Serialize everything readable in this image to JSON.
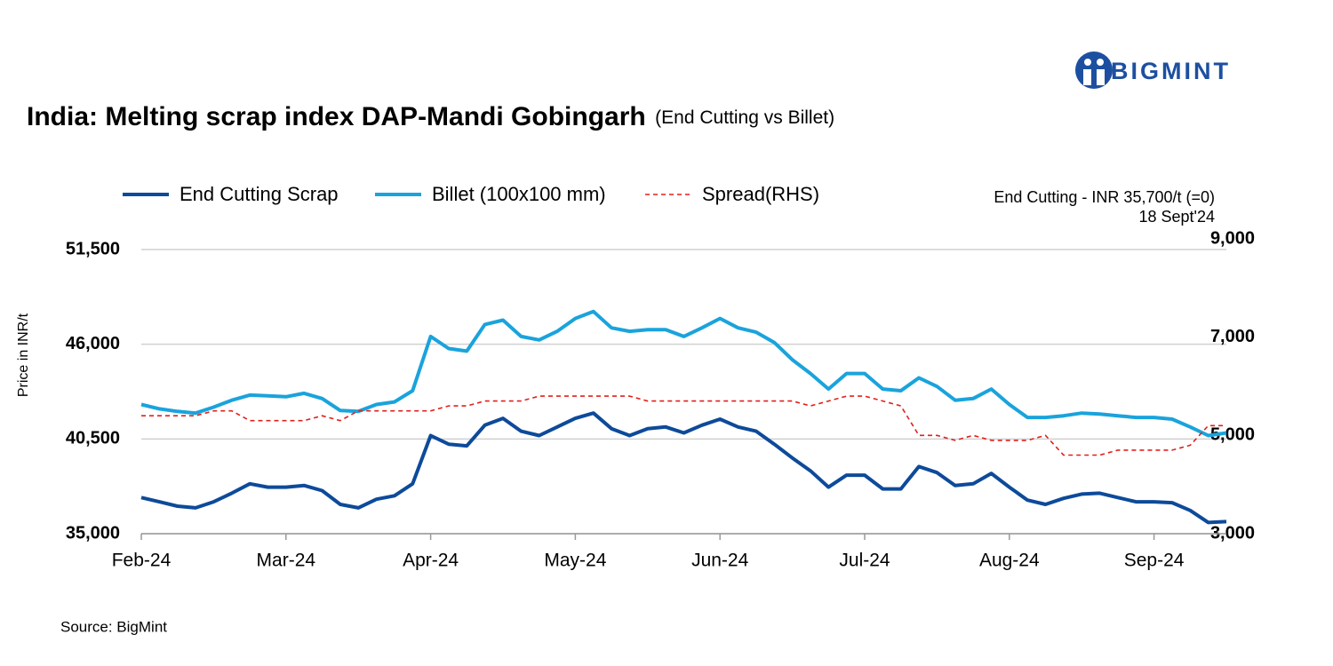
{
  "logo": {
    "text": "BIGMINT"
  },
  "chart_data": {
    "type": "line",
    "title": "India: Melting scrap index DAP-Mandi Gobingarh",
    "subtitle": "(End Cutting vs Billet)",
    "y_label": "Price in INR/t",
    "annotation": [
      "End Cutting - INR 35,700/t (=0)",
      "18 Sept'24"
    ],
    "source": "Source: BigMint",
    "categories": [
      "Feb-24",
      null,
      null,
      null,
      null,
      null,
      null,
      null,
      "Mar-24",
      null,
      null,
      null,
      null,
      null,
      null,
      null,
      "Apr-24",
      null,
      null,
      null,
      null,
      null,
      null,
      null,
      "May-24",
      null,
      null,
      null,
      null,
      null,
      null,
      null,
      "Jun-24",
      null,
      null,
      null,
      null,
      null,
      null,
      null,
      "Jul-24",
      null,
      null,
      null,
      null,
      null,
      null,
      null,
      "Aug-24",
      null,
      null,
      null,
      null,
      null,
      null,
      null,
      "Sep-24",
      null,
      null,
      null,
      null
    ],
    "series": [
      {
        "name": "End Cutting Scrap",
        "color": "#0d4a9a",
        "style": "solid",
        "axis": "y",
        "values": [
          37100,
          36850,
          36600,
          36500,
          36850,
          37350,
          37900,
          37700,
          37700,
          37800,
          37500,
          36700,
          36500,
          37000,
          37200,
          37900,
          40700,
          40200,
          40100,
          41300,
          41700,
          40950,
          40700,
          41200,
          41700,
          42000,
          41100,
          40700,
          41100,
          41200,
          40850,
          41300,
          41650,
          41200,
          40950,
          40200,
          39400,
          38650,
          37700,
          38400,
          38400,
          37600,
          37600,
          38900,
          38550,
          37800,
          37900,
          38500,
          37700,
          36950,
          36700,
          37050,
          37300,
          37350,
          37100,
          36850,
          36850,
          36800,
          36350,
          35650,
          35700
        ]
      },
      {
        "name": "Billet (100x100 mm)",
        "color": "#1aa3dc",
        "style": "solid",
        "axis": "y",
        "values": [
          42500,
          42250,
          42100,
          42000,
          42350,
          42750,
          43050,
          43000,
          42950,
          43150,
          42850,
          42150,
          42100,
          42500,
          42650,
          43300,
          46450,
          45750,
          45600,
          47150,
          47400,
          46450,
          46250,
          46750,
          47500,
          47900,
          46950,
          46750,
          46850,
          46850,
          46450,
          46950,
          47500,
          46950,
          46700,
          46100,
          45100,
          44300,
          43400,
          44300,
          44300,
          43400,
          43300,
          44050,
          43550,
          42750,
          42850,
          43400,
          42500,
          41750,
          41750,
          41850,
          42000,
          41950,
          41850,
          41750,
          41750,
          41650,
          41200,
          40700,
          40850
        ]
      },
      {
        "name": "Spread(RHS)",
        "color": "#e0201b",
        "style": "dashed",
        "axis": "y2",
        "values": [
          5400,
          5400,
          5400,
          5400,
          5500,
          5500,
          5300,
          5300,
          5300,
          5300,
          5400,
          5300,
          5500,
          5500,
          5500,
          5500,
          5500,
          5600,
          5600,
          5700,
          5700,
          5700,
          5800,
          5800,
          5800,
          5800,
          5800,
          5800,
          5700,
          5700,
          5700,
          5700,
          5700,
          5700,
          5700,
          5700,
          5700,
          5600,
          5700,
          5800,
          5800,
          5700,
          5600,
          5000,
          5000,
          4900,
          5000,
          4900,
          4900,
          4900,
          5000,
          4600,
          4600,
          4600,
          4700,
          4700,
          4700,
          4700,
          4800,
          5200,
          5200
        ]
      }
    ],
    "ylim": [
      35000,
      51500
    ],
    "yticks": [
      {
        "value": 35000,
        "label": "35,000"
      },
      {
        "value": 40500,
        "label": "40,500"
      },
      {
        "value": 46000,
        "label": "46,000"
      },
      {
        "value": 51500,
        "label": "51,500"
      }
    ],
    "y2lim": [
      3000,
      9000
    ],
    "y2ticks": [
      {
        "value": 3000,
        "label": "3,000"
      },
      {
        "value": 5000,
        "label": "5,000"
      },
      {
        "value": 7000,
        "label": "7,000"
      },
      {
        "value": 9000,
        "label": "9,000"
      }
    ],
    "grid": true,
    "legend": "top"
  }
}
